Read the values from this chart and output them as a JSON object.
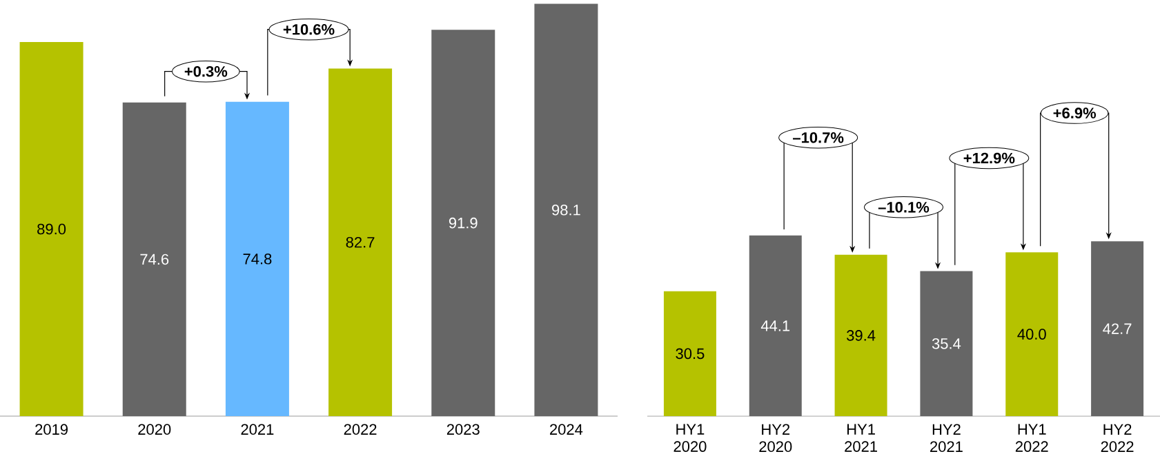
{
  "chart_data": [
    {
      "type": "bar",
      "categories": [
        "2019",
        "2020",
        "2021",
        "2022",
        "2023",
        "2024"
      ],
      "values": [
        89.0,
        74.6,
        74.8,
        82.7,
        91.9,
        98.1
      ],
      "colors": [
        "#b5c200",
        "#666666",
        "#66b8ff",
        "#b5c200",
        "#666666",
        "#666666"
      ],
      "value_labels": [
        "89.0",
        "74.6",
        "74.8",
        "82.7",
        "91.9",
        "98.1"
      ],
      "tick_labels": "x",
      "annotations": [
        "+0.3%",
        "+10.6%"
      ]
    },
    {
      "type": "bar",
      "categories": [
        "HY1 2020",
        "HY2 2020",
        "HY1 2021",
        "HY2 2021",
        "HY1 2022",
        "HY2 2022"
      ],
      "values": [
        30.5,
        44.1,
        39.4,
        35.4,
        40.0,
        42.7
      ],
      "colors": [
        "#b5c200",
        "#666666",
        "#b5c200",
        "#666666",
        "#b5c200",
        "#666666"
      ],
      "value_labels": [
        "30.5",
        "44.1",
        "39.4",
        "35.4",
        "40.0",
        "42.7"
      ],
      "tick_labels": "x",
      "annotations": [
        "–10.7%",
        "–10.1%",
        "+12.9%",
        "+6.9%"
      ]
    }
  ]
}
